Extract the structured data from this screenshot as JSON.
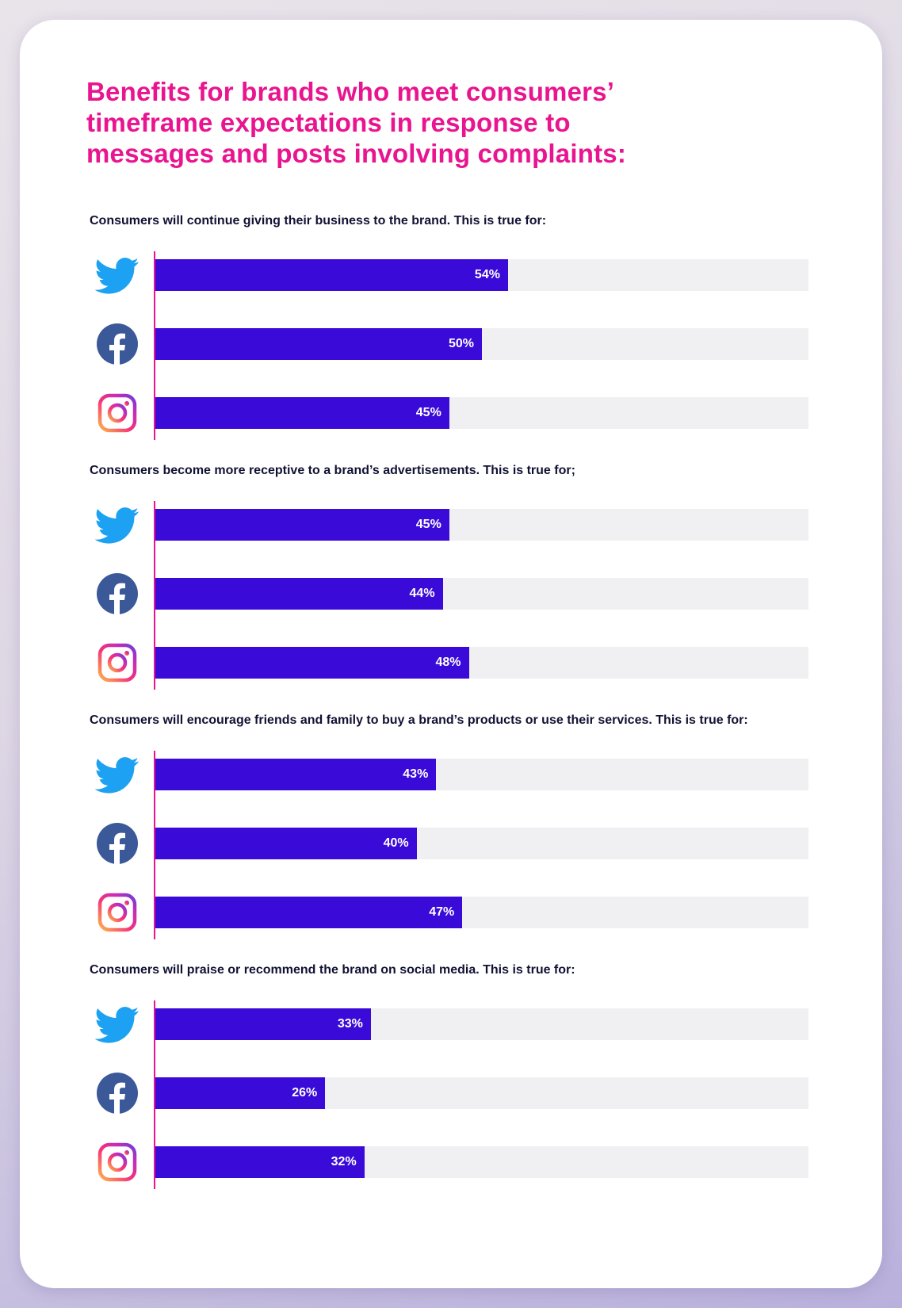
{
  "title_lines": [
    "Benefits for brands who meet consumers’",
    "timeframe expectations in response to",
    "messages and posts involving complaints:"
  ],
  "colors": {
    "title": "#e9148f",
    "bar": "#3a0ad8",
    "track": "#f0f0f2",
    "axis": "#e9148f",
    "twitter": "#1da1f2",
    "facebook": "#3b5998"
  },
  "icons": [
    "twitter-icon",
    "facebook-icon",
    "instagram-icon"
  ],
  "chart_data": {
    "type": "bar",
    "orientation": "horizontal",
    "xlim": [
      0,
      100
    ],
    "platforms": [
      "Twitter",
      "Facebook",
      "Instagram"
    ],
    "groups": [
      {
        "question": "Consumers will continue giving their business to the brand. This is true for:",
        "values": [
          54,
          50,
          45
        ],
        "labels": [
          "54%",
          "50%",
          "45%"
        ]
      },
      {
        "question": "Consumers become more receptive to a brand’s advertisements. This is true for;",
        "values": [
          45,
          44,
          48
        ],
        "labels": [
          "45%",
          "44%",
          "48%"
        ]
      },
      {
        "question": "Consumers will encourage friends and family to buy a brand’s products or use their services. This is true for:",
        "values": [
          43,
          40,
          47
        ],
        "labels": [
          "43%",
          "40%",
          "47%"
        ]
      },
      {
        "question": "Consumers will praise or recommend the brand on social media. This is true for:",
        "values": [
          33,
          26,
          32
        ],
        "labels": [
          "33%",
          "26%",
          "32%"
        ]
      }
    ]
  }
}
